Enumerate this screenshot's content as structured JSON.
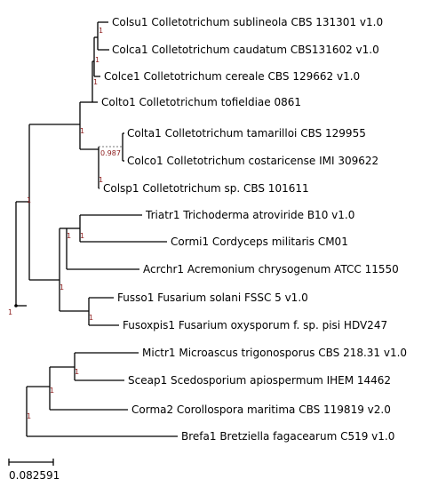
{
  "tree": {
    "leaves": [
      {
        "id": "colsu1",
        "label": "Colsu1 Colletotrichum sublineola CBS 131301 v1.0"
      },
      {
        "id": "colca1",
        "label": "Colca1 Colletotrichum caudatum CBS131602 v1.0"
      },
      {
        "id": "colce1",
        "label": "Colce1 Colletotrichum cereale CBS 129662 v1.0"
      },
      {
        "id": "colto1",
        "label": "Colto1 Colletotrichum tofieldiae 0861"
      },
      {
        "id": "colta1",
        "label": "Colta1 Colletotrichum tamarilloi CBS 129955"
      },
      {
        "id": "colco1",
        "label": "Colco1 Colletotrichum costaricense IMI 309622"
      },
      {
        "id": "colsp1",
        "label": "Colsp1 Colletotrichum sp. CBS 101611"
      },
      {
        "id": "triatr1",
        "label": "Triatr1 Trichoderma atroviride B10 v1.0"
      },
      {
        "id": "cormi1",
        "label": "Cormi1 Cordyceps militaris CM01"
      },
      {
        "id": "acrchr1",
        "label": "Acrchr1 Acremonium chrysogenum ATCC 11550"
      },
      {
        "id": "fusso1",
        "label": "Fusso1 Fusarium solani FSSC 5 v1.0"
      },
      {
        "id": "fusoxpis1",
        "label": "Fusoxpis1 Fusarium oxysporum f. sp. pisi HDV247"
      },
      {
        "id": "mictr1",
        "label": "Mictr1 Microascus trigonosporus CBS 218.31 v1.0"
      },
      {
        "id": "sceap1",
        "label": "Sceap1 Scedosporium apiospermum IHEM 14462"
      },
      {
        "id": "corma2",
        "label": "Corma2 Corollospora maritima CBS 119819 v2.0"
      },
      {
        "id": "brefa1",
        "label": "Brefa1 Bretziella fagacearum C519 v1.0"
      }
    ],
    "support_values": [
      "1",
      "1",
      "1",
      "1",
      "0.987",
      "1",
      "1",
      "1",
      "1",
      "1",
      "1",
      "1",
      "1",
      "1",
      "1"
    ],
    "scale_bar": {
      "label": "0.082591"
    }
  }
}
